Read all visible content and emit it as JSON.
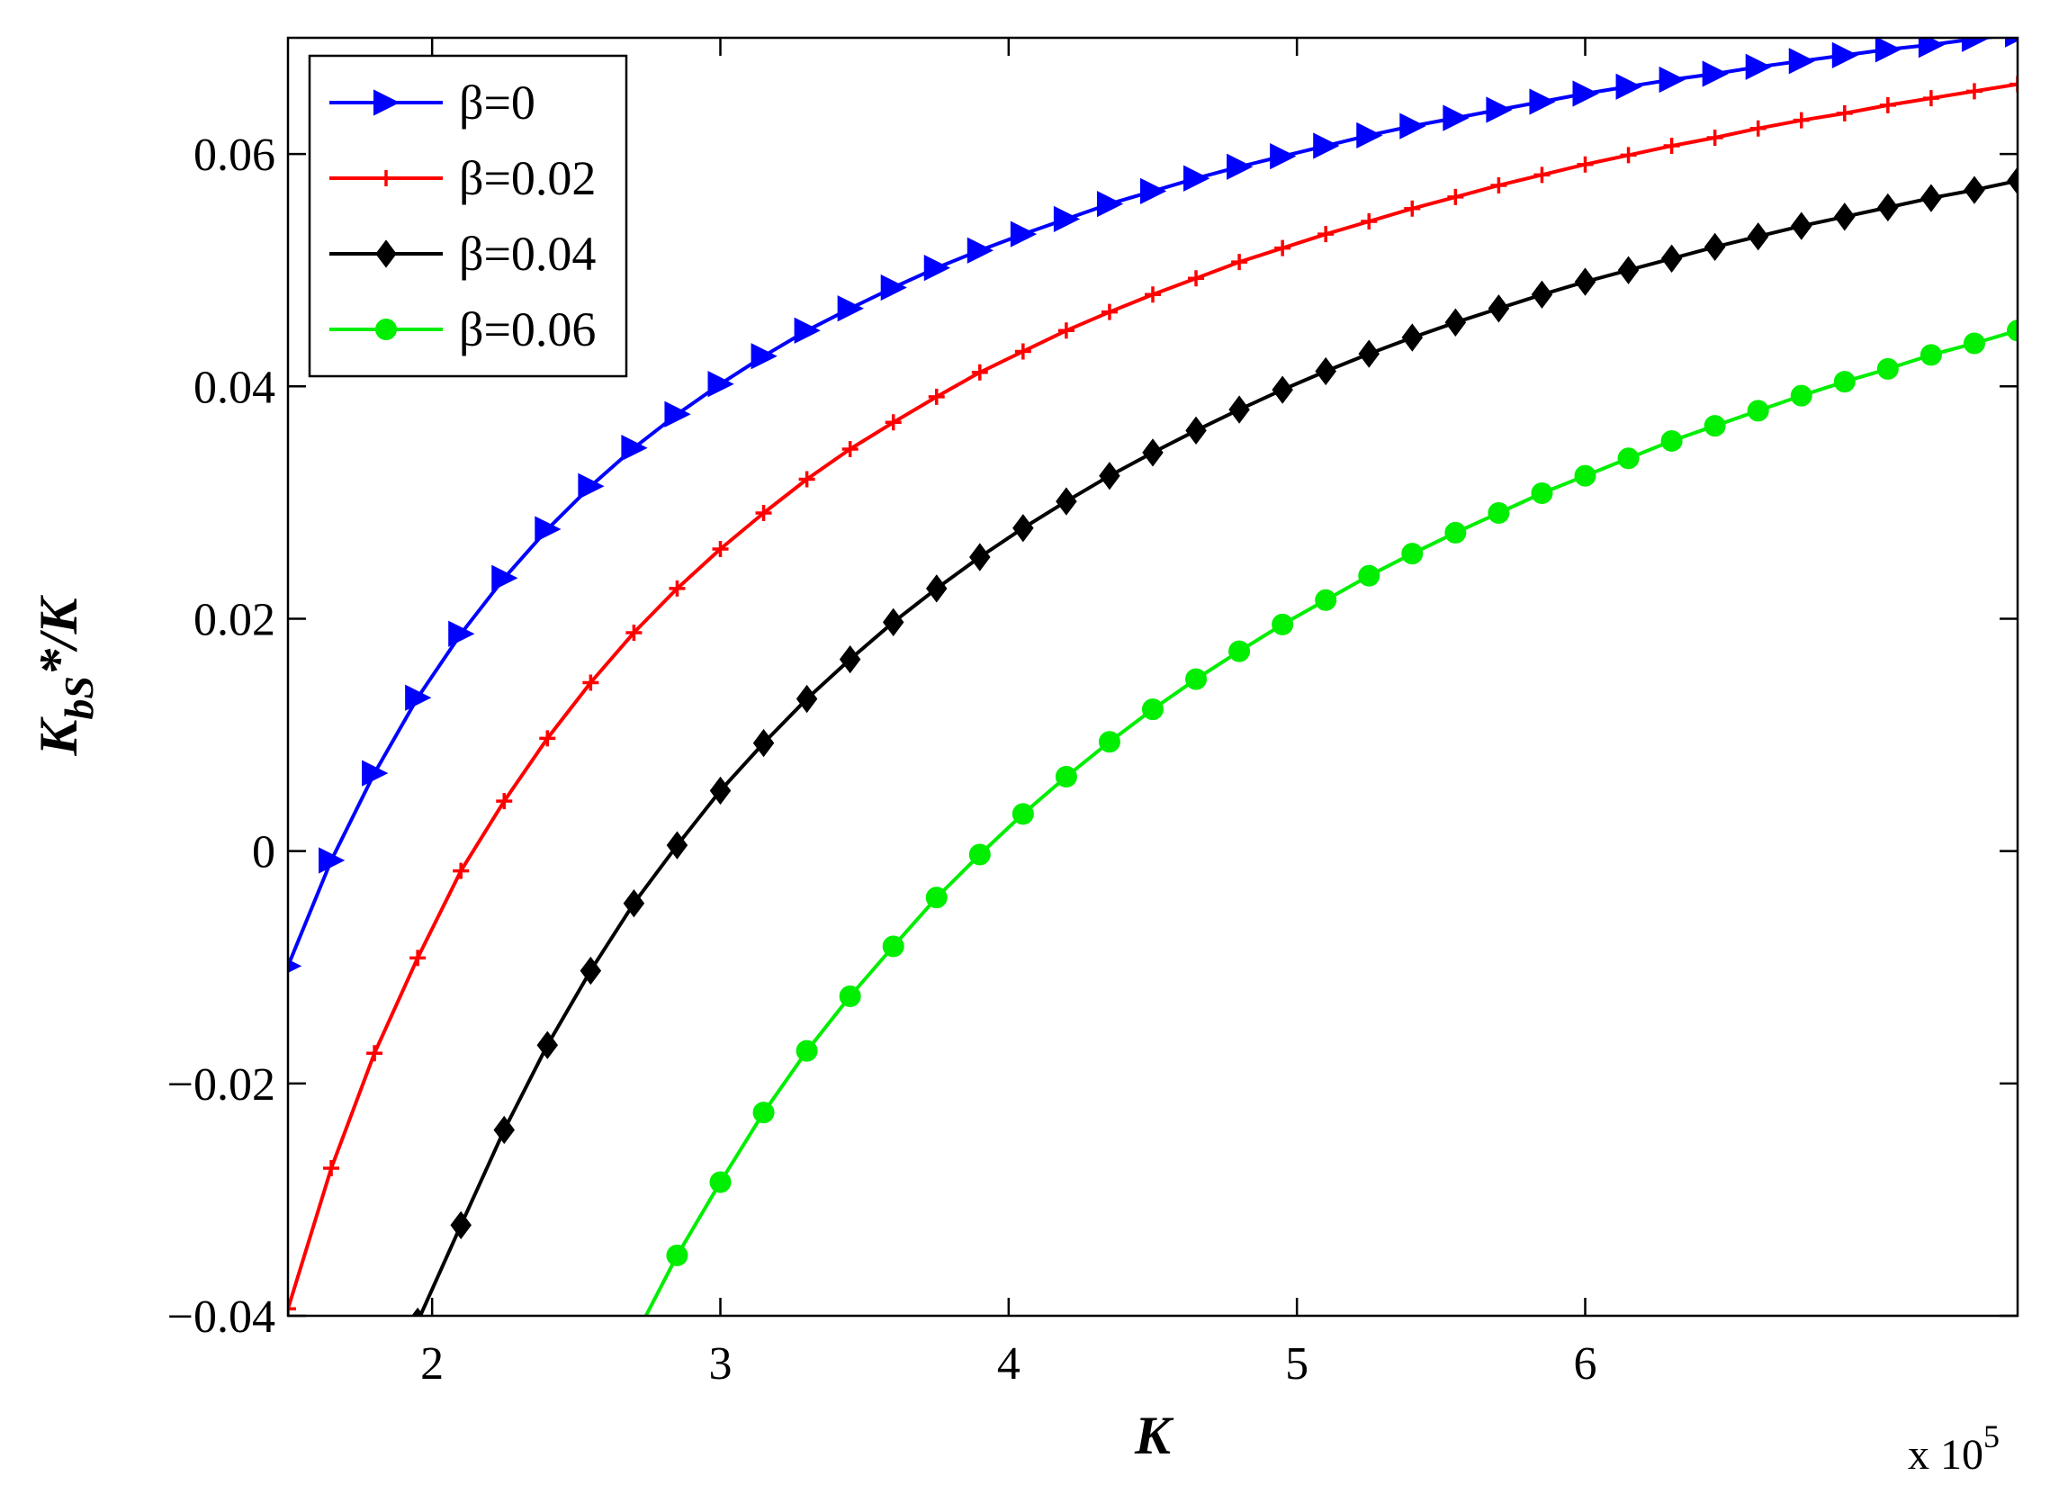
{
  "chart_data": {
    "type": "line",
    "title": "",
    "xlabel": "K",
    "ylabel": {
      "main": "K",
      "sub": "bS",
      "rest": "*/K"
    },
    "x_multiplier": {
      "prefix": "x 10",
      "exponent": "5"
    },
    "xlim": [
      150000,
      750000
    ],
    "ylim": [
      -0.04,
      0.07
    ],
    "xticks": [
      200000,
      300000,
      400000,
      500000,
      600000
    ],
    "xtick_labels": [
      "2",
      "3",
      "4",
      "5",
      "6"
    ],
    "yticks": [
      -0.04,
      -0.02,
      0,
      0.02,
      0.04,
      0.06
    ],
    "ytick_labels": [
      "−0.04",
      "−0.02",
      "0",
      "0.02",
      "0.04",
      "0.06"
    ],
    "grid": false,
    "legend_position": "top-left",
    "series": [
      {
        "name": "β=0",
        "color": "#0000ff",
        "marker": "triangle-right",
        "x": [
          150000,
          165000,
          180000,
          195000,
          210000,
          225000,
          240000,
          255000,
          270000,
          285000,
          300000,
          315000,
          330000,
          345000,
          360000,
          375000,
          390000,
          405000,
          420000,
          435000,
          450000,
          465000,
          480000,
          495000,
          510000,
          525000,
          540000,
          555000,
          570000,
          585000,
          600000,
          615000,
          630000,
          645000,
          660000,
          675000,
          690000,
          705000,
          720000,
          735000,
          750000
        ],
        "y": [
          -0.0099,
          -0.0008,
          0.0067,
          0.0132,
          0.0187,
          0.0235,
          0.0277,
          0.0314,
          0.0347,
          0.0376,
          0.0402,
          0.0426,
          0.0448,
          0.0467,
          0.0485,
          0.0502,
          0.0517,
          0.0531,
          0.0544,
          0.0557,
          0.0568,
          0.0579,
          0.0589,
          0.0598,
          0.0607,
          0.0616,
          0.0624,
          0.0631,
          0.0638,
          0.0645,
          0.0652,
          0.0658,
          0.0664,
          0.0669,
          0.0675,
          0.068,
          0.0685,
          0.069,
          0.0694,
          0.0699,
          0.0703
        ]
      },
      {
        "name": "β=0.02",
        "color": "#ff0000",
        "marker": "plus",
        "x": [
          150000,
          165000,
          180000,
          195000,
          210000,
          225000,
          240000,
          255000,
          270000,
          285000,
          300000,
          315000,
          330000,
          345000,
          360000,
          375000,
          390000,
          405000,
          420000,
          435000,
          450000,
          465000,
          480000,
          495000,
          510000,
          525000,
          540000,
          555000,
          570000,
          585000,
          600000,
          615000,
          630000,
          645000,
          660000,
          675000,
          690000,
          705000,
          720000,
          735000,
          750000
        ],
        "y": [
          -0.0394,
          -0.0273,
          -0.0174,
          -0.0092,
          -0.0017,
          0.0043,
          0.0097,
          0.0145,
          0.0188,
          0.0226,
          0.026,
          0.0291,
          0.032,
          0.0346,
          0.0369,
          0.0391,
          0.0412,
          0.043,
          0.0448,
          0.0464,
          0.0479,
          0.0493,
          0.0507,
          0.0519,
          0.0531,
          0.0542,
          0.0553,
          0.0563,
          0.0573,
          0.0582,
          0.0591,
          0.0599,
          0.0607,
          0.0614,
          0.0622,
          0.0629,
          0.0635,
          0.0642,
          0.0648,
          0.0654,
          0.066
        ]
      },
      {
        "name": "β=0.04",
        "color": "#000000",
        "marker": "diamond",
        "x": [
          195000,
          210000,
          225000,
          240000,
          255000,
          270000,
          285000,
          300000,
          315000,
          330000,
          345000,
          360000,
          375000,
          390000,
          405000,
          420000,
          435000,
          450000,
          465000,
          480000,
          495000,
          510000,
          525000,
          540000,
          555000,
          570000,
          585000,
          600000,
          615000,
          630000,
          645000,
          660000,
          675000,
          690000,
          705000,
          720000,
          735000,
          750000
        ],
        "y": [
          -0.0405,
          -0.0322,
          -0.024,
          -0.0167,
          -0.0103,
          -0.0045,
          0.0005,
          0.0052,
          0.0093,
          0.0131,
          0.0165,
          0.0197,
          0.0226,
          0.0253,
          0.0278,
          0.0301,
          0.0323,
          0.0343,
          0.0362,
          0.038,
          0.0397,
          0.0413,
          0.0428,
          0.0442,
          0.0455,
          0.0467,
          0.0479,
          0.049,
          0.05,
          0.051,
          0.052,
          0.0529,
          0.0538,
          0.0546,
          0.0554,
          0.0562,
          0.0569,
          0.0577
        ]
      },
      {
        "name": "β=0.06",
        "color": "#00ee00",
        "marker": "circle",
        "x": [
          270000,
          285000,
          300000,
          315000,
          330000,
          345000,
          360000,
          375000,
          390000,
          405000,
          420000,
          435000,
          450000,
          465000,
          480000,
          495000,
          510000,
          525000,
          540000,
          555000,
          570000,
          585000,
          600000,
          615000,
          630000,
          645000,
          660000,
          675000,
          690000,
          705000,
          720000,
          735000,
          750000
        ],
        "y": [
          -0.042,
          -0.0348,
          -0.0285,
          -0.0225,
          -0.0172,
          -0.0125,
          -0.0082,
          -0.004,
          -0.0003,
          0.0032,
          0.0064,
          0.0094,
          0.0122,
          0.0148,
          0.0172,
          0.0195,
          0.0216,
          0.0237,
          0.0256,
          0.0274,
          0.0291,
          0.0308,
          0.0323,
          0.0338,
          0.0353,
          0.0366,
          0.0379,
          0.0392,
          0.0404,
          0.0415,
          0.0427,
          0.0437,
          0.0448
        ]
      }
    ]
  }
}
